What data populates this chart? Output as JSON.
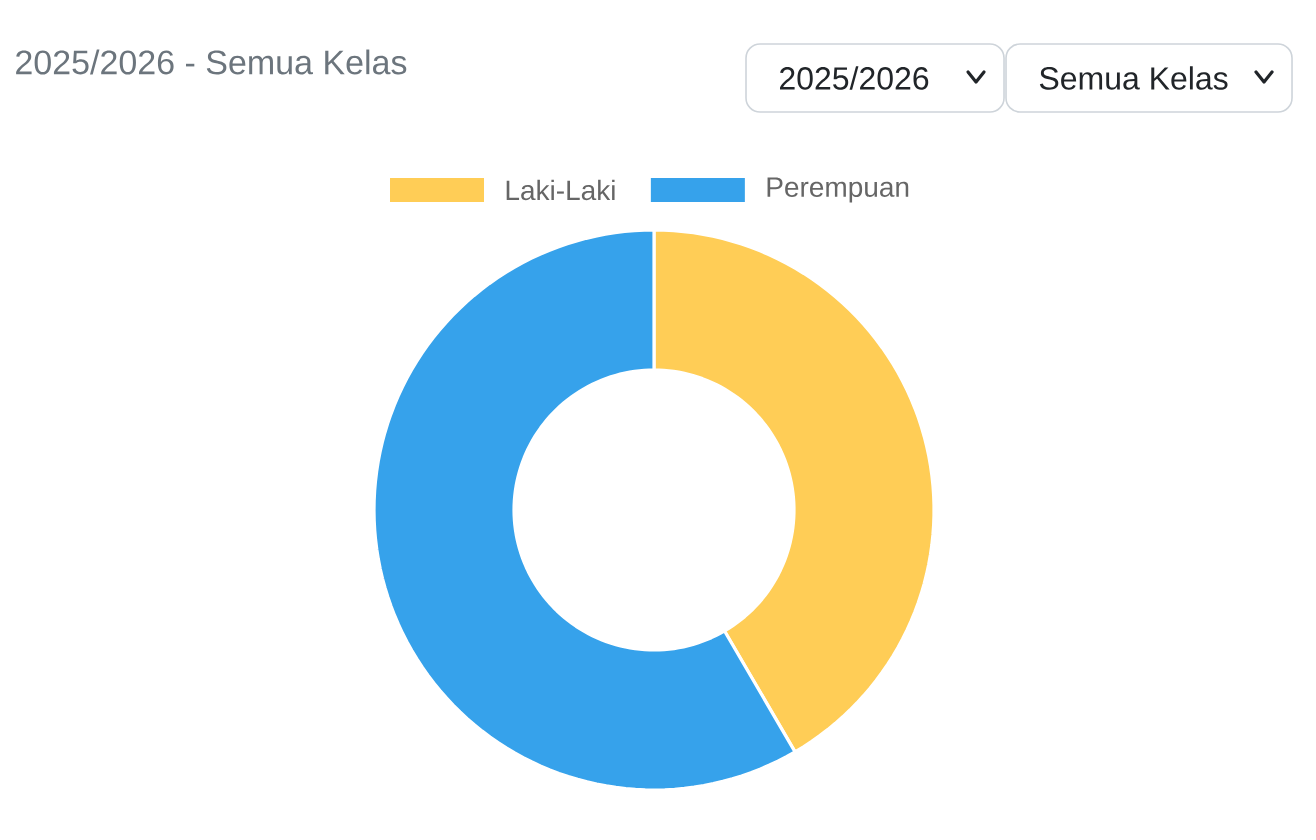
{
  "chart_data": {
    "type": "donut",
    "title": "2025/2026 - Semua Kelas",
    "categories": [
      "Laki-Laki",
      "Perempuan"
    ],
    "values": [
      41.6,
      58.4
    ],
    "colors": [
      "#ffcd56",
      "#36a2eb"
    ],
    "legend": "top",
    "annotations": [
      "2025/2026",
      "Semua Kelas"
    ]
  }
}
